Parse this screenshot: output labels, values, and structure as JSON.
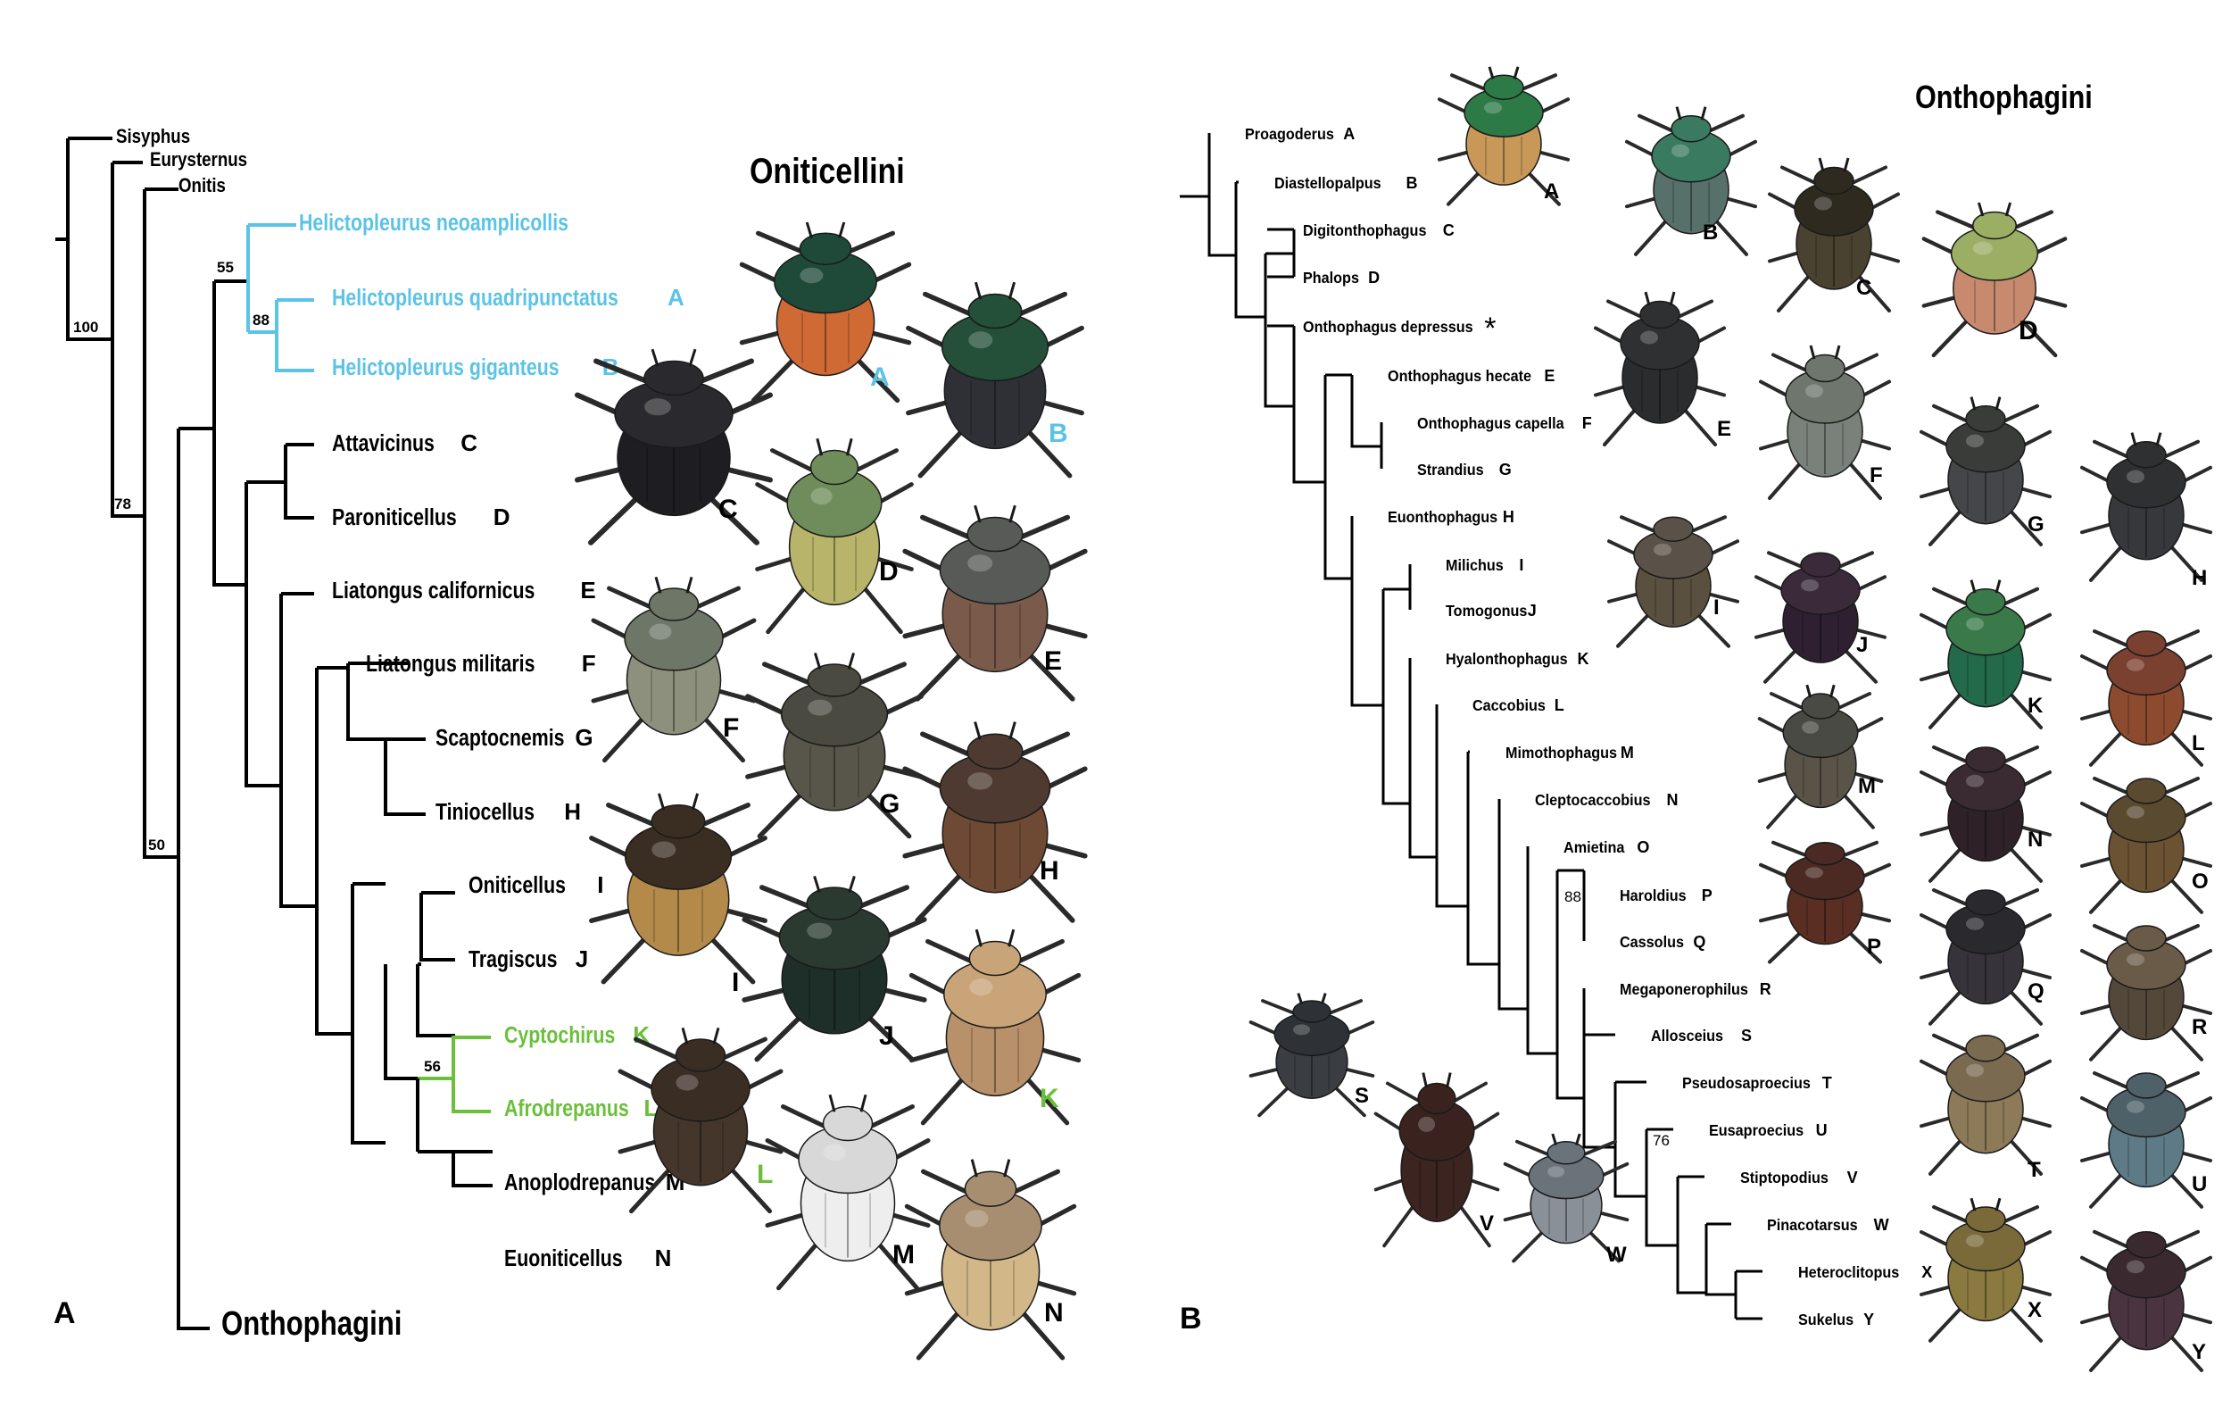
{
  "panel_a": {
    "panel_label": "A",
    "clade_title": "Oniticellini",
    "outgroups": [
      "Sisyphus",
      "Eurysternus",
      "Onitis"
    ],
    "onthophagini_label": "Onthophagini",
    "support": {
      "n100": "100",
      "n78": "78",
      "n50": "50",
      "n55": "55",
      "n88": "88",
      "n56": "56"
    },
    "colors": {
      "helictopleurus": "#5bc3e6",
      "afro": "#6bbf3b",
      "black": "#000000"
    },
    "taxa": [
      {
        "name": "Helictopleurus neoamplicollis",
        "letter": ""
      },
      {
        "name": "Helictopleurus quadripunctatus",
        "letter": "A"
      },
      {
        "name": "Helictopleurus giganteus",
        "letter": "B"
      },
      {
        "name": "Attavicinus",
        "letter": "C"
      },
      {
        "name": "Paroniticellus",
        "letter": "D"
      },
      {
        "name": "Liatongus californicus",
        "letter": "E"
      },
      {
        "name": "Liatongus militaris",
        "letter": "F"
      },
      {
        "name": "Scaptocnemis",
        "letter": "G"
      },
      {
        "name": "Tiniocellus",
        "letter": "H"
      },
      {
        "name": "Oniticellus",
        "letter": "I"
      },
      {
        "name": "Tragiscus",
        "letter": "J"
      },
      {
        "name": "Cyptochirus",
        "letter": "K"
      },
      {
        "name": "Afrodrepanus",
        "letter": "L"
      },
      {
        "name": "Anoplodrepanus",
        "letter": "M"
      },
      {
        "name": "Euoniticellus",
        "letter": "N"
      }
    ],
    "photo_letters": [
      "A",
      "B",
      "C",
      "D",
      "E",
      "F",
      "G",
      "H",
      "I",
      "J",
      "K",
      "L",
      "M",
      "N"
    ]
  },
  "panel_b": {
    "panel_label": "B",
    "clade_title": "Onthophagini",
    "support": {
      "n88": "88",
      "n76": "76"
    },
    "asterisk": "*",
    "taxa": [
      {
        "name": "Proagoderus",
        "letter": "A"
      },
      {
        "name": "Diastellopalpus",
        "letter": "B"
      },
      {
        "name": "Digitonthophagus",
        "letter": "C"
      },
      {
        "name": "Phalops",
        "letter": "D"
      },
      {
        "name": "Onthophagus depressus",
        "letter": ""
      },
      {
        "name": "Onthophagus hecate",
        "letter": "E"
      },
      {
        "name": "Onthophagus capella",
        "letter": "F"
      },
      {
        "name": "Strandius",
        "letter": "G"
      },
      {
        "name": "Euonthophagus",
        "letter": "H"
      },
      {
        "name": "Milichus",
        "letter": "I"
      },
      {
        "name": "Tomogonus",
        "letter": "J"
      },
      {
        "name": "Hyalonthophagus",
        "letter": "K"
      },
      {
        "name": "Caccobius",
        "letter": "L"
      },
      {
        "name": "Mimothophagus",
        "letter": "M"
      },
      {
        "name": "Cleptocaccobius",
        "letter": "N"
      },
      {
        "name": "Amietina",
        "letter": "O"
      },
      {
        "name": "Haroldius",
        "letter": "P"
      },
      {
        "name": "Cassolus",
        "letter": "Q"
      },
      {
        "name": "Megaponerophilus",
        "letter": "R"
      },
      {
        "name": "Allosceius",
        "letter": "S"
      },
      {
        "name": "Pseudosaproecius",
        "letter": "T"
      },
      {
        "name": "Eusaproecius",
        "letter": "U"
      },
      {
        "name": "Stiptopodius",
        "letter": "V"
      },
      {
        "name": "Pinacotarsus",
        "letter": "W"
      },
      {
        "name": "Heteroclitopus",
        "letter": "X"
      },
      {
        "name": "Sukelus",
        "letter": "Y"
      }
    ],
    "photo_letters": [
      "A",
      "B",
      "C",
      "D",
      "E",
      "F",
      "G",
      "H",
      "I",
      "J",
      "K",
      "L",
      "M",
      "N",
      "O",
      "P",
      "Q",
      "R",
      "S",
      "T",
      "U",
      "V",
      "W",
      "X",
      "Y"
    ]
  }
}
